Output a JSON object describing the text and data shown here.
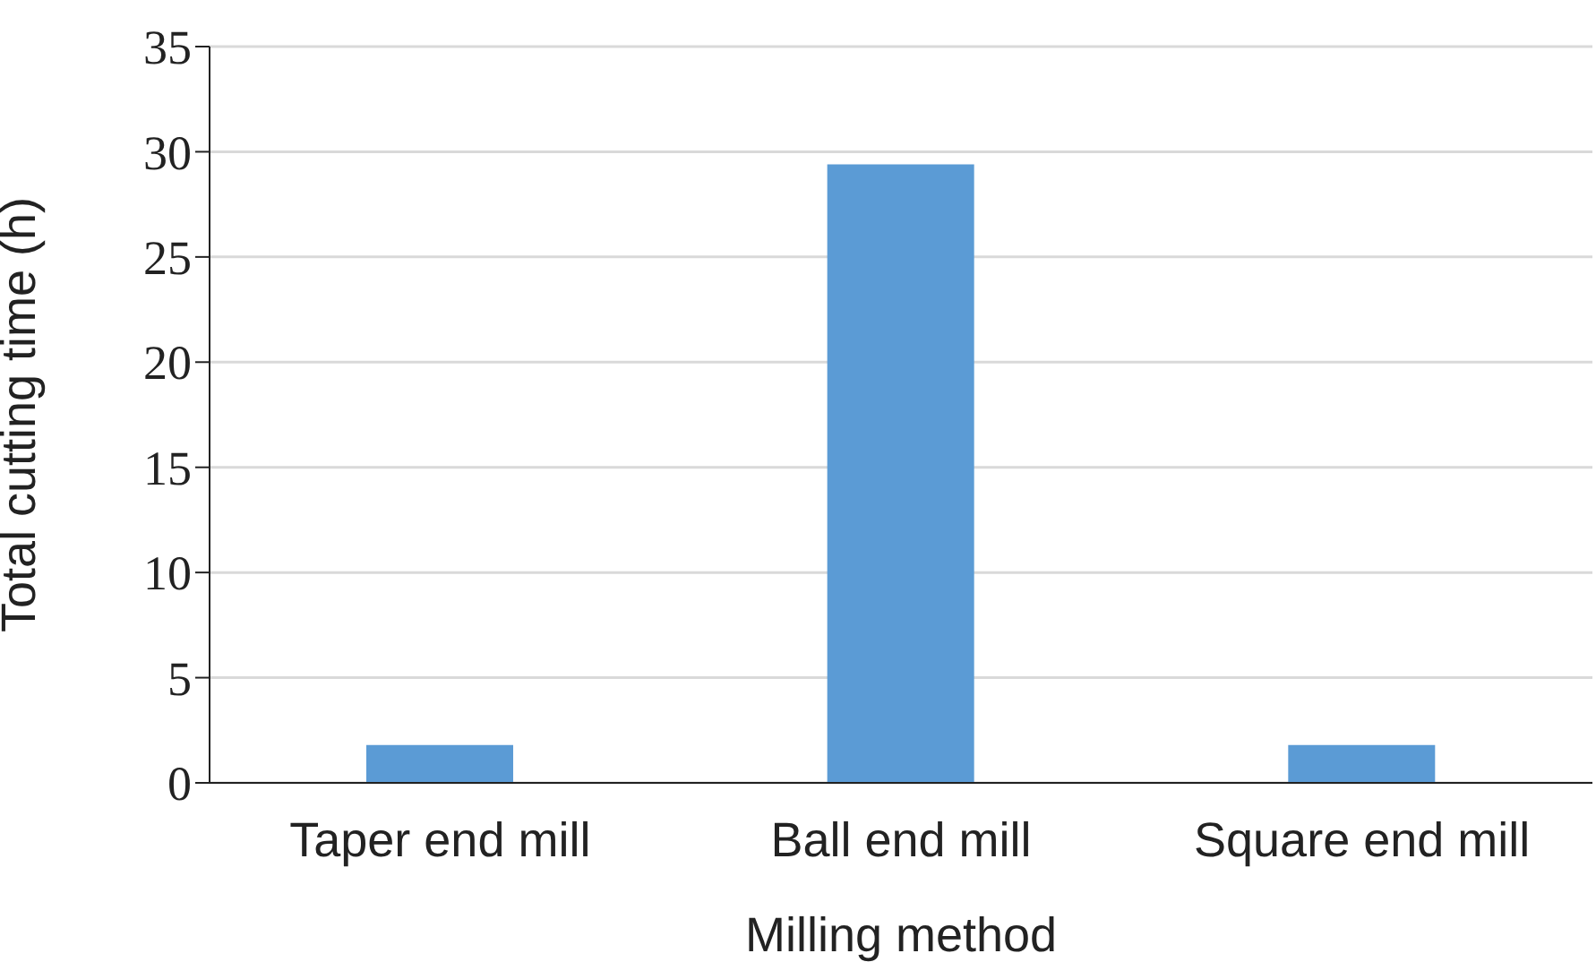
{
  "chart_data": {
    "type": "bar",
    "xlabel": "Milling method",
    "ylabel": "Total cutting time (h)",
    "categories": [
      "Taper end mill",
      "Ball end mill",
      "Square end mill"
    ],
    "values": [
      1.8,
      29.4,
      1.8
    ],
    "color": "#5b9bd5",
    "ylim": [
      0,
      35
    ],
    "yticks": [
      0,
      5,
      10,
      15,
      20,
      25,
      30,
      35
    ],
    "grid": "y"
  }
}
